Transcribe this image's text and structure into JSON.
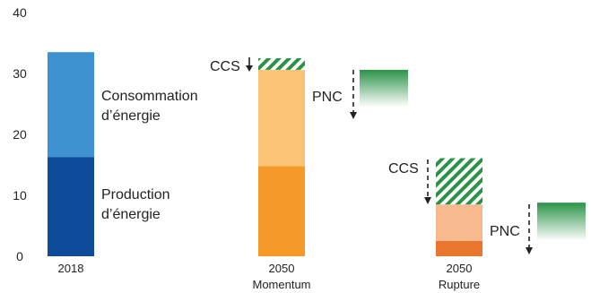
{
  "chart_data": {
    "type": "bar",
    "ylim": [
      0,
      40
    ],
    "yticks": [
      "0",
      "10",
      "20",
      "30",
      "40"
    ],
    "grid": false,
    "colors": {
      "dark_blue": "#0e4c9a",
      "light_blue": "#3f92d2",
      "dark_orange": "#f4992a",
      "light_orange": "#fbc375",
      "rupture_dark": "#e8762c",
      "rupture_light": "#f9b98f",
      "green_dark": "#2b9348",
      "green_light": "#ffffff"
    },
    "bars": [
      {
        "id": "b2018",
        "category": [
          "2018"
        ],
        "segments": [
          {
            "from": 0,
            "to": 16.3,
            "color": "dark_blue"
          },
          {
            "from": 16.3,
            "to": 33.5,
            "color": "light_blue"
          }
        ]
      },
      {
        "id": "bmomentum",
        "category": [
          "2050",
          "Momentum"
        ],
        "segments": [
          {
            "from": 0,
            "to": 14.8,
            "color": "dark_orange"
          },
          {
            "from": 14.8,
            "to": 30.6,
            "color": "light_orange"
          }
        ],
        "ccs": {
          "from": 30.6,
          "to": 32.5
        },
        "pnc": {
          "from": 24.5,
          "to": 30.6
        }
      },
      {
        "id": "brupture",
        "category": [
          "2050",
          "Rupture"
        ],
        "segments": [
          {
            "from": 0,
            "to": 2.5,
            "color": "rupture_dark"
          },
          {
            "from": 2.5,
            "to": 8.5,
            "color": "rupture_light"
          }
        ],
        "ccs": {
          "from": 8.5,
          "to": 16.1
        },
        "pnc": {
          "from": 2.5,
          "to": 8.8
        }
      }
    ],
    "annotations": {
      "consumption": [
        "Consommation",
        "d’énergie"
      ],
      "production": [
        "Production",
        "d’énergie"
      ],
      "ccs": "CCS",
      "pnc": "PNC"
    }
  }
}
